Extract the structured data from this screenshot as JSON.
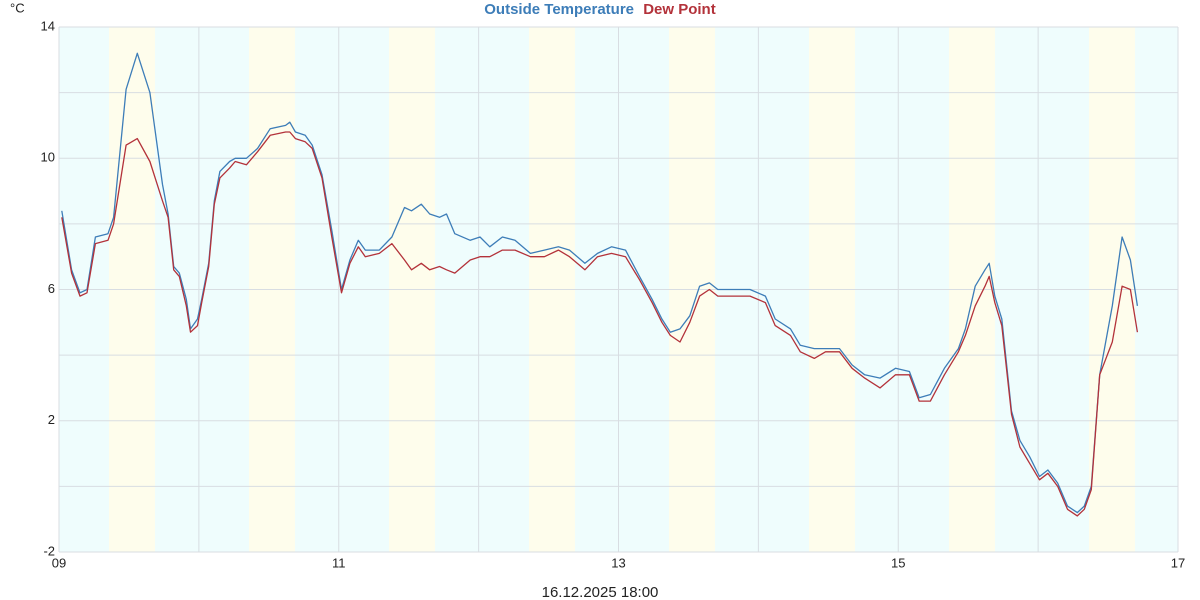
{
  "chart_data": {
    "type": "line",
    "y_unit": "°C",
    "annotation": "16.12.2025 18:00",
    "xlim": [
      9,
      17
    ],
    "xticks": [
      {
        "value": 9,
        "label": "09"
      },
      11,
      13,
      15,
      17
    ],
    "x_minor_ticks": [
      10,
      12,
      14,
      16
    ],
    "ylim": [
      -2,
      14
    ],
    "yticks": [
      -2,
      2,
      6,
      10,
      14
    ],
    "y_minor_ticks": [
      0,
      4,
      8,
      12
    ],
    "grid": true,
    "x": [
      9.02,
      9.09,
      9.15,
      9.2,
      9.26,
      9.35,
      9.39,
      9.48,
      9.56,
      9.65,
      9.74,
      9.78,
      9.82,
      9.86,
      9.91,
      9.94,
      9.99,
      10.02,
      10.07,
      10.11,
      10.15,
      10.22,
      10.26,
      10.34,
      10.42,
      10.51,
      10.62,
      10.65,
      10.69,
      10.76,
      10.81,
      10.88,
      10.95,
      11.02,
      11.08,
      11.14,
      11.19,
      11.29,
      11.38,
      11.47,
      11.52,
      11.59,
      11.65,
      11.72,
      11.77,
      11.83,
      11.94,
      12.01,
      12.08,
      12.17,
      12.26,
      12.37,
      12.47,
      12.57,
      12.65,
      12.76,
      12.85,
      12.95,
      13.05,
      13.15,
      13.24,
      13.31,
      13.37,
      13.44,
      13.51,
      13.58,
      13.65,
      13.71,
      13.83,
      13.94,
      14.05,
      14.12,
      14.23,
      14.3,
      14.4,
      14.48,
      14.58,
      14.67,
      14.76,
      14.87,
      14.98,
      15.08,
      15.15,
      15.23,
      15.33,
      15.43,
      15.48,
      15.55,
      15.62,
      15.65,
      15.69,
      15.74,
      15.81,
      15.87,
      15.94,
      16.01,
      16.07,
      16.14,
      16.21,
      16.28,
      16.33,
      16.38,
      16.44,
      16.53,
      16.6,
      16.66,
      16.71
    ],
    "series": [
      {
        "name": "Outside Temperature",
        "color": "#3d7db8",
        "values": [
          8.4,
          6.6,
          5.9,
          6.0,
          7.6,
          7.7,
          8.2,
          12.1,
          13.2,
          12.0,
          9.2,
          8.3,
          6.7,
          6.5,
          5.7,
          4.8,
          5.1,
          5.7,
          6.8,
          8.7,
          9.6,
          9.9,
          10.0,
          10.0,
          10.3,
          10.9,
          11.0,
          11.1,
          10.8,
          10.7,
          10.4,
          9.5,
          7.8,
          6.0,
          6.9,
          7.5,
          7.2,
          7.2,
          7.6,
          8.5,
          8.4,
          8.6,
          8.3,
          8.2,
          8.3,
          7.7,
          7.5,
          7.6,
          7.3,
          7.6,
          7.5,
          7.1,
          7.2,
          7.3,
          7.2,
          6.8,
          7.1,
          7.3,
          7.2,
          6.4,
          5.7,
          5.1,
          4.7,
          4.8,
          5.2,
          6.1,
          6.2,
          6.0,
          6.0,
          6.0,
          5.8,
          5.1,
          4.8,
          4.3,
          4.2,
          4.2,
          4.2,
          3.7,
          3.4,
          3.3,
          3.6,
          3.5,
          2.7,
          2.8,
          3.6,
          4.2,
          4.8,
          6.1,
          6.6,
          6.8,
          5.8,
          5.1,
          2.3,
          1.4,
          0.9,
          0.3,
          0.5,
          0.1,
          -0.6,
          -0.8,
          -0.6,
          0.0,
          3.4,
          5.5,
          7.6,
          6.9,
          5.5
        ]
      },
      {
        "name": "Dew Point",
        "color": "#b3323a",
        "values": [
          8.2,
          6.5,
          5.8,
          5.9,
          7.4,
          7.5,
          8.0,
          10.4,
          10.6,
          9.9,
          8.7,
          8.2,
          6.6,
          6.4,
          5.5,
          4.7,
          4.9,
          5.6,
          6.7,
          8.6,
          9.4,
          9.7,
          9.9,
          9.8,
          10.2,
          10.7,
          10.8,
          10.8,
          10.6,
          10.5,
          10.3,
          9.4,
          7.6,
          5.9,
          6.8,
          7.3,
          7.0,
          7.1,
          7.4,
          6.9,
          6.6,
          6.8,
          6.6,
          6.7,
          6.6,
          6.5,
          6.9,
          7.0,
          7.0,
          7.2,
          7.2,
          7.0,
          7.0,
          7.2,
          7.0,
          6.6,
          7.0,
          7.1,
          7.0,
          6.3,
          5.6,
          5.0,
          4.6,
          4.4,
          5.0,
          5.8,
          6.0,
          5.8,
          5.8,
          5.8,
          5.6,
          4.9,
          4.6,
          4.1,
          3.9,
          4.1,
          4.1,
          3.6,
          3.3,
          3.0,
          3.4,
          3.4,
          2.6,
          2.6,
          3.4,
          4.1,
          4.6,
          5.5,
          6.1,
          6.4,
          5.6,
          4.9,
          2.2,
          1.2,
          0.7,
          0.2,
          0.4,
          0.0,
          -0.7,
          -0.9,
          -0.7,
          -0.1,
          3.4,
          4.4,
          6.1,
          6.0,
          4.7
        ]
      }
    ]
  }
}
